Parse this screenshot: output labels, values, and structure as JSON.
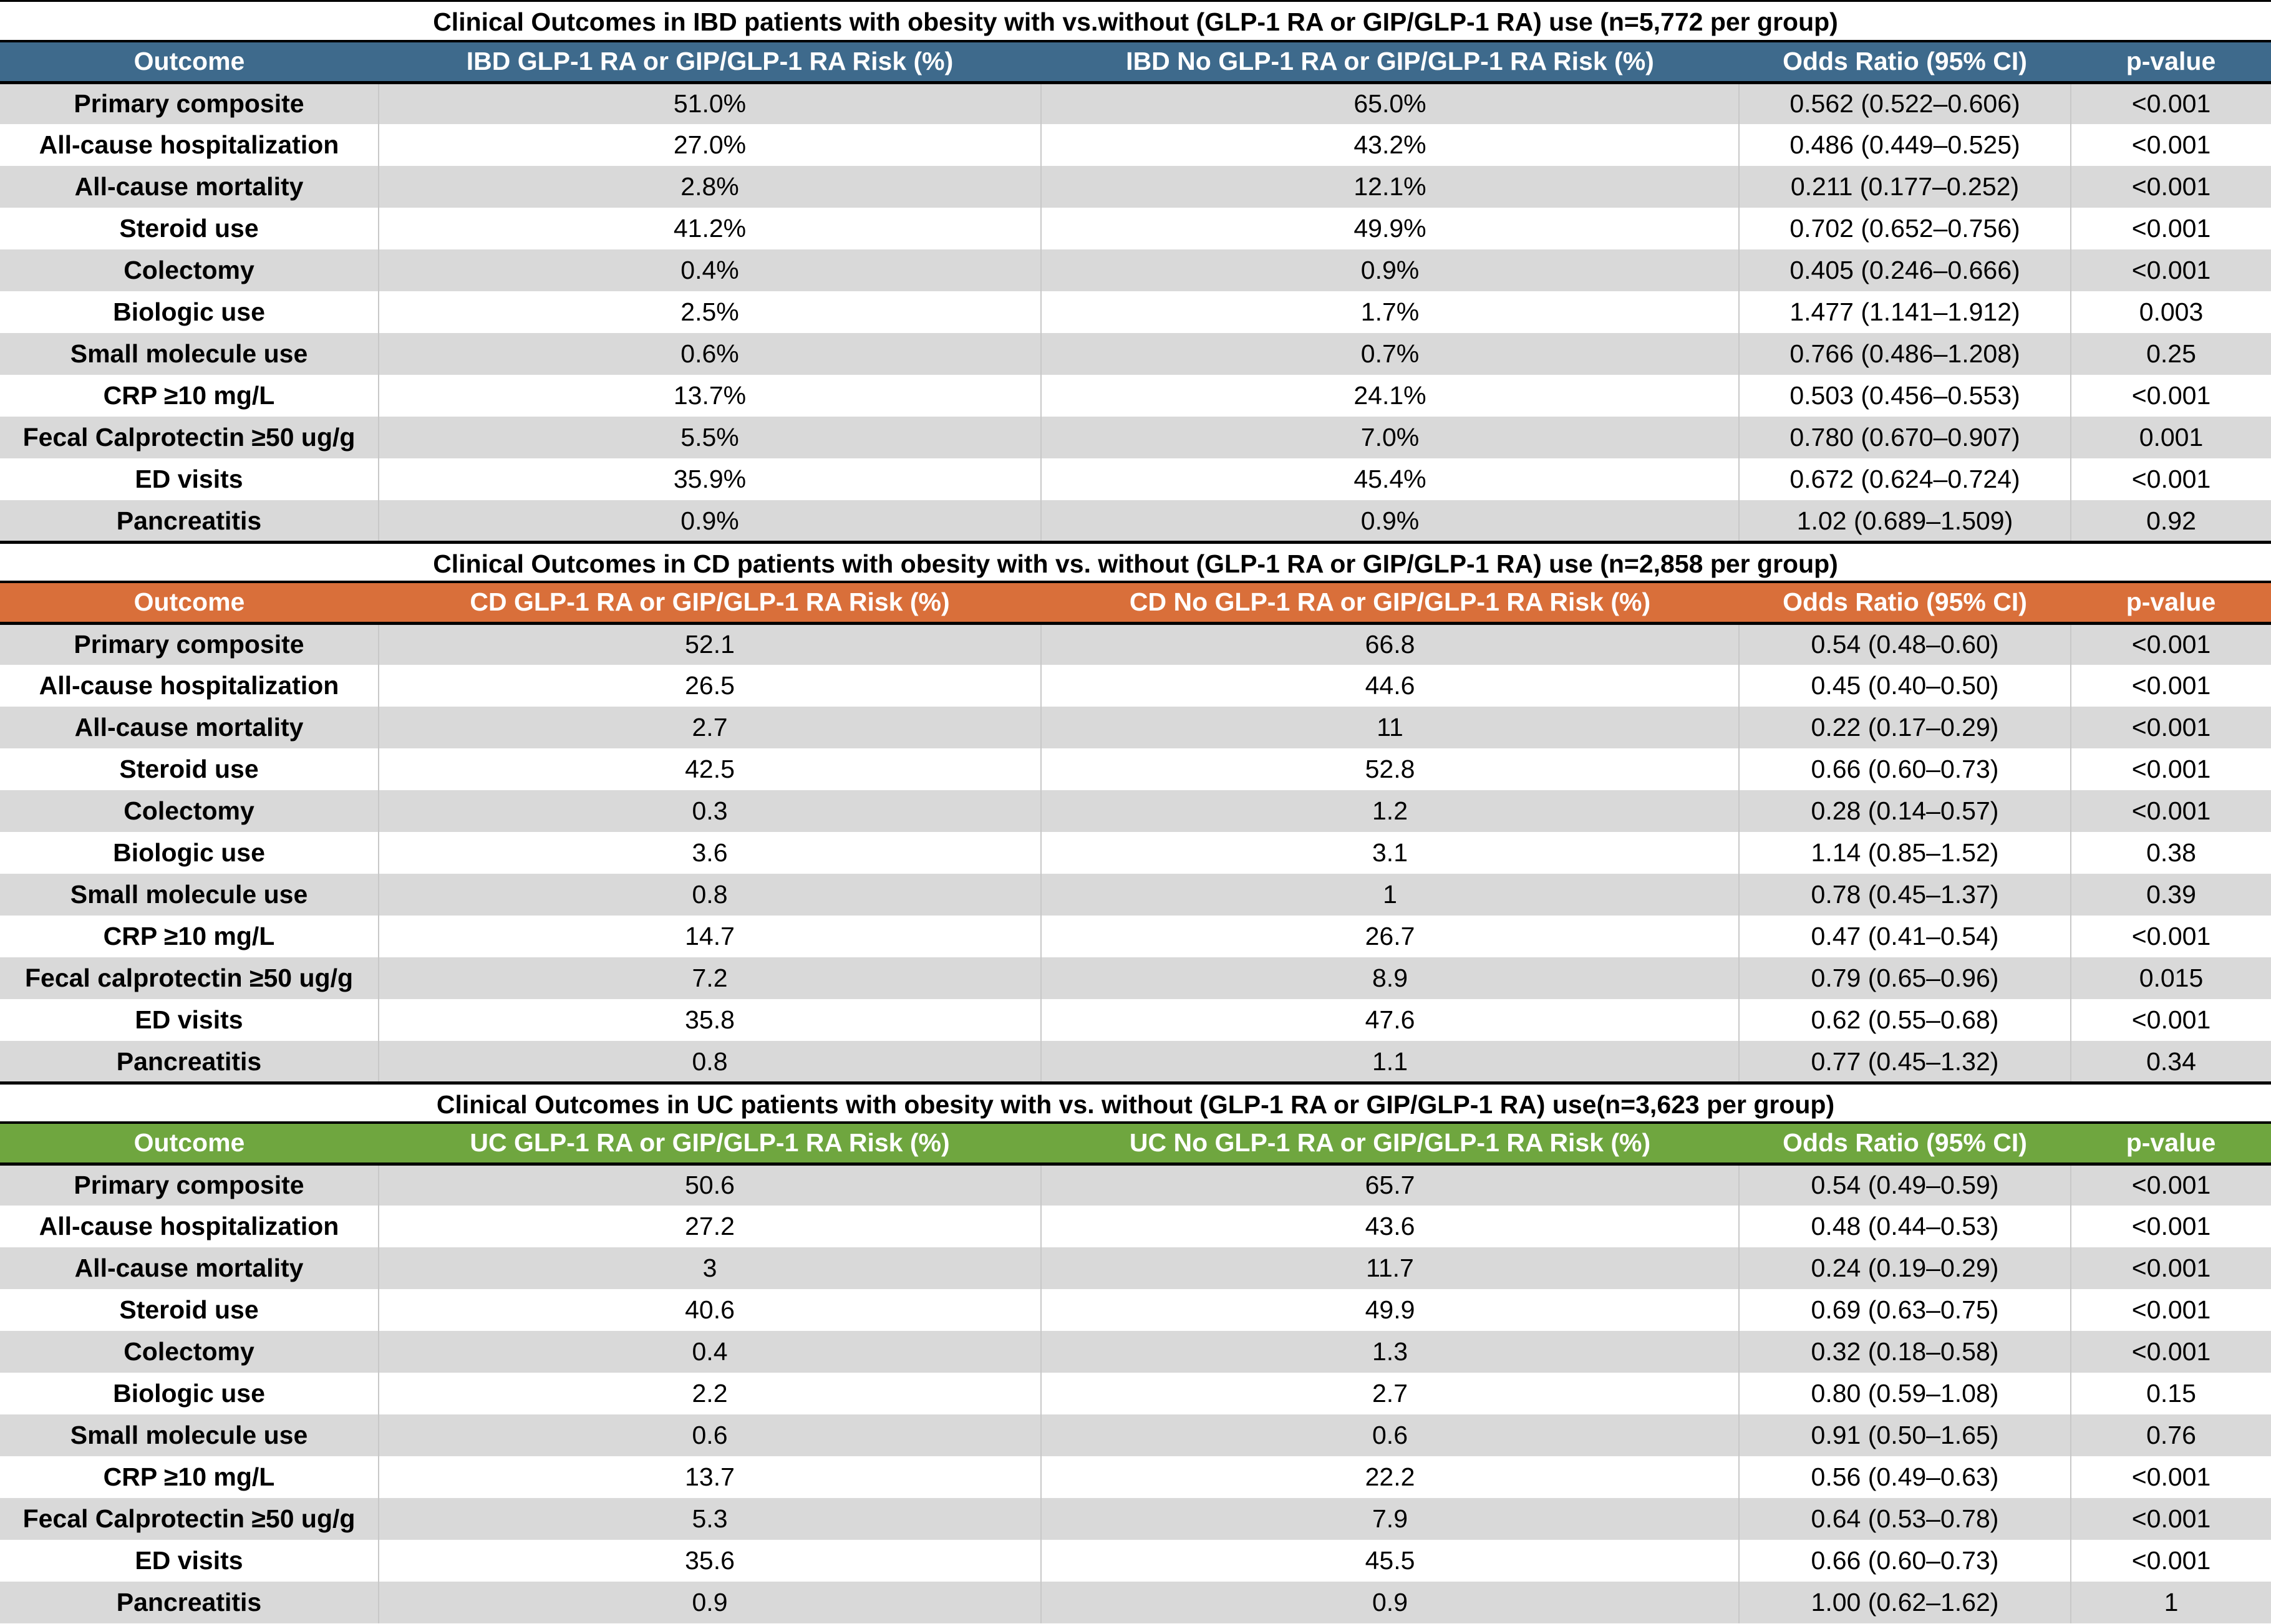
{
  "sections": [
    {
      "title": "Clinical Outcomes in IBD patients with obesity with vs.without (GLP-1 RA or GIP/GLP-1 RA) use (n=5,772 per group)",
      "headers": [
        "Outcome",
        "IBD GLP-1 RA or GIP/GLP-1 RA Risk (%)",
        "IBD No GLP-1 RA or GIP/GLP-1 RA Risk (%)",
        "Odds Ratio (95% CI)",
        "p-value"
      ],
      "header_color": "#3e6a8c",
      "rows": [
        [
          "Primary composite",
          "51.0%",
          "65.0%",
          "0.562 (0.522–0.606)",
          "<0.001"
        ],
        [
          "All-cause hospitalization",
          "27.0%",
          "43.2%",
          "0.486 (0.449–0.525)",
          "<0.001"
        ],
        [
          "All-cause mortality",
          "2.8%",
          "12.1%",
          "0.211 (0.177–0.252)",
          "<0.001"
        ],
        [
          "Steroid use",
          "41.2%",
          "49.9%",
          "0.702 (0.652–0.756)",
          "<0.001"
        ],
        [
          "Colectomy",
          "0.4%",
          "0.9%",
          "0.405 (0.246–0.666)",
          "<0.001"
        ],
        [
          "Biologic use",
          "2.5%",
          "1.7%",
          "1.477 (1.141–1.912)",
          "0.003"
        ],
        [
          "Small molecule use",
          "0.6%",
          "0.7%",
          "0.766 (0.486–1.208)",
          "0.25"
        ],
        [
          "CRP ≥10 mg/L",
          "13.7%",
          "24.1%",
          "0.503 (0.456–0.553)",
          "<0.001"
        ],
        [
          "Fecal Calprotectin ≥50 ug/g",
          "5.5%",
          "7.0%",
          "0.780 (0.670–0.907)",
          "0.001"
        ],
        [
          "ED visits",
          "35.9%",
          "45.4%",
          "0.672 (0.624–0.724)",
          "<0.001"
        ],
        [
          "Pancreatitis",
          "0.9%",
          "0.9%",
          "1.02 (0.689–1.509)",
          "0.92"
        ]
      ]
    },
    {
      "title": "Clinical Outcomes in CD patients with obesity with vs. without (GLP-1 RA or GIP/GLP-1 RA) use (n=2,858 per group)",
      "headers": [
        "Outcome",
        "CD GLP-1 RA or GIP/GLP-1 RA Risk (%)",
        "CD No GLP-1 RA or GIP/GLP-1 RA Risk (%)",
        "Odds Ratio (95% CI)",
        "p-value"
      ],
      "header_color": "#d96f3a",
      "rows": [
        [
          "Primary composite",
          "52.1",
          "66.8",
          "0.54 (0.48–0.60)",
          "<0.001"
        ],
        [
          "All-cause hospitalization",
          "26.5",
          "44.6",
          "0.45 (0.40–0.50)",
          "<0.001"
        ],
        [
          "All-cause mortality",
          "2.7",
          "11",
          "0.22 (0.17–0.29)",
          "<0.001"
        ],
        [
          "Steroid use",
          "42.5",
          "52.8",
          "0.66 (0.60–0.73)",
          "<0.001"
        ],
        [
          "Colectomy",
          "0.3",
          "1.2",
          "0.28 (0.14–0.57)",
          "<0.001"
        ],
        [
          "Biologic use",
          "3.6",
          "3.1",
          "1.14 (0.85–1.52)",
          "0.38"
        ],
        [
          "Small molecule use",
          "0.8",
          "1",
          "0.78 (0.45–1.37)",
          "0.39"
        ],
        [
          "CRP ≥10 mg/L",
          "14.7",
          "26.7",
          "0.47 (0.41–0.54)",
          "<0.001"
        ],
        [
          "Fecal calprotectin ≥50 ug/g",
          "7.2",
          "8.9",
          "0.79 (0.65–0.96)",
          "0.015"
        ],
        [
          "ED visits",
          "35.8",
          "47.6",
          "0.62 (0.55–0.68)",
          "<0.001"
        ],
        [
          "Pancreatitis",
          "0.8",
          "1.1",
          "0.77 (0.45–1.32)",
          "0.34"
        ]
      ]
    },
    {
      "title": "Clinical Outcomes in UC patients with obesity with vs. without (GLP-1 RA or GIP/GLP-1 RA) use(n=3,623 per group)",
      "headers": [
        "Outcome",
        "UC GLP-1 RA or GIP/GLP-1 RA Risk (%)",
        "UC No GLP-1 RA or GIP/GLP-1 RA Risk (%)",
        "Odds Ratio (95% CI)",
        "p-value"
      ],
      "header_color": "#6fa63f",
      "rows": [
        [
          "Primary composite",
          "50.6",
          "65.7",
          "0.54 (0.49–0.59)",
          "<0.001"
        ],
        [
          "All-cause hospitalization",
          "27.2",
          "43.6",
          "0.48 (0.44–0.53)",
          "<0.001"
        ],
        [
          "All-cause mortality",
          "3",
          "11.7",
          "0.24 (0.19–0.29)",
          "<0.001"
        ],
        [
          "Steroid use",
          "40.6",
          "49.9",
          "0.69 (0.63–0.75)",
          "<0.001"
        ],
        [
          "Colectomy",
          "0.4",
          "1.3",
          "0.32 (0.18–0.58)",
          "<0.001"
        ],
        [
          "Biologic use",
          "2.2",
          "2.7",
          "0.80 (0.59–1.08)",
          "0.15"
        ],
        [
          "Small molecule use",
          "0.6",
          "0.6",
          "0.91 (0.50–1.65)",
          "0.76"
        ],
        [
          "CRP ≥10 mg/L",
          "13.7",
          "22.2",
          "0.56 (0.49–0.63)",
          "<0.001"
        ],
        [
          "Fecal Calprotectin ≥50 ug/g",
          "5.3",
          "7.9",
          "0.64 (0.53–0.78)",
          "<0.001"
        ],
        [
          "ED visits",
          "35.6",
          "45.5",
          "0.66 (0.60–0.73)",
          "<0.001"
        ],
        [
          "Pancreatitis",
          "0.9",
          "0.9",
          "1.00 (0.62–1.62)",
          "1"
        ]
      ]
    }
  ]
}
